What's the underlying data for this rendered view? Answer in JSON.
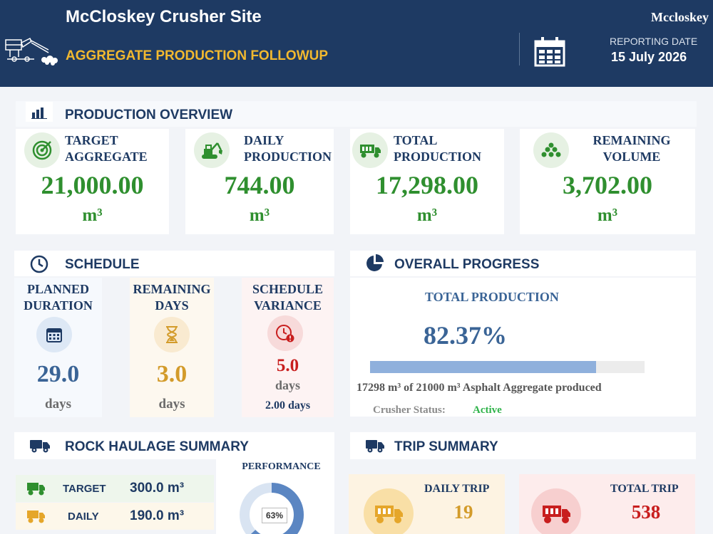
{
  "header": {
    "site_title": "McCloskey Crusher Site",
    "subtitle": "AGGREGATE PRODUCTION FOLLOWUP",
    "company": "Mccloskey",
    "reporting_label": "REPORTING DATE",
    "reporting_date": "15 July 2026"
  },
  "production_overview": {
    "title": "PRODUCTION OVERVIEW",
    "cards": [
      {
        "label_1": "TARGET",
        "label_2": "AGGREGATE",
        "value": "21,000.00",
        "unit": "m³",
        "icon": "target-icon"
      },
      {
        "label_1": "DAILY",
        "label_2": "PRODUCTION",
        "value": "744.00",
        "unit": "m³",
        "icon": "excavator-icon"
      },
      {
        "label_1": "TOTAL",
        "label_2": "PRODUCTION",
        "value": "17,298.00",
        "unit": "m³",
        "icon": "dump-truck-icon"
      },
      {
        "label_1": "REMAINING",
        "label_2": "VOLUME",
        "value": "3,702.00",
        "unit": "m³",
        "icon": "stockpile-icon"
      }
    ]
  },
  "schedule": {
    "title": "SCHEDULE",
    "planned": {
      "label_1": "PLANNED",
      "label_2": "DURATION",
      "value": "29.0",
      "unit": "days"
    },
    "remaining": {
      "label_1": "REMAINING",
      "label_2": "DAYS",
      "value": "3.0",
      "unit": "days"
    },
    "variance": {
      "label_1": "SCHEDULE",
      "label_2": "VARIANCE",
      "value": "5.0",
      "unit": "days",
      "sub": "2.00 days"
    }
  },
  "overall_progress": {
    "title": "OVERALL PROGRESS",
    "label": "TOTAL PRODUCTION",
    "percent_text": "82.37%",
    "percent": 82.37,
    "description": "17298 m³ of 21000 m³ Asphalt Aggregate produced",
    "status_label": "Crusher Status:",
    "status_value": "Active"
  },
  "rock_haulage": {
    "title": "ROCK HAULAGE SUMMARY",
    "rows": [
      {
        "label": "TARGET",
        "value": "300.0 m³"
      },
      {
        "label": "DAILY",
        "value": "190.0 m³"
      }
    ],
    "performance_label": "PERFORMANCE",
    "performance_text": "63%",
    "performance": 63
  },
  "trip_summary": {
    "title": "TRIP SUMMARY",
    "daily_label": "DAILY TRIP",
    "daily_value": "19",
    "total_label": "TOTAL TRIP",
    "total_value": "538"
  },
  "colors": {
    "navy": "#1e3a63",
    "gold": "#f2b92f",
    "green": "#2f8f2f",
    "red": "#c81e1e",
    "orange": "#d39b2a",
    "progress_fill": "#8fb0dc"
  }
}
